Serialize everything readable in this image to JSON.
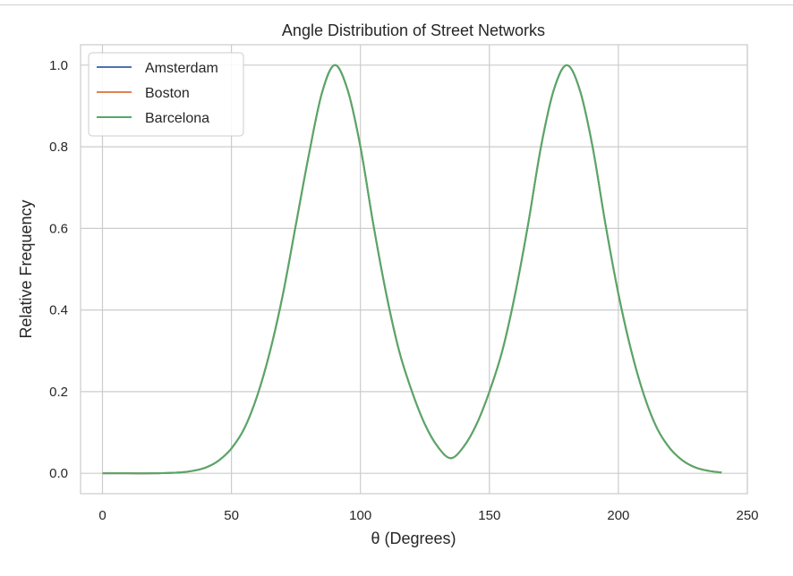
{
  "chart_data": {
    "type": "line",
    "title": "Angle Distribution of Street Networks",
    "xlabel": "θ (Degrees)",
    "ylabel": "Relative Frequency",
    "xlim": [
      -8.5,
      250
    ],
    "ylim": [
      -0.05,
      1.05
    ],
    "xticks": [
      0,
      50,
      100,
      150,
      200,
      250
    ],
    "yticks": [
      0.0,
      0.2,
      0.4,
      0.6,
      0.8,
      1.0
    ],
    "xtick_labels": [
      "0",
      "50",
      "100",
      "150",
      "200",
      "250"
    ],
    "ytick_labels": [
      "0.0",
      "0.2",
      "0.4",
      "0.6",
      "0.8",
      "1.0"
    ],
    "grid": true,
    "legend_position": "top-left",
    "x": [
      0,
      10,
      20,
      30,
      35,
      40,
      45,
      50,
      55,
      60,
      65,
      70,
      75,
      80,
      85,
      90,
      95,
      100,
      105,
      110,
      115,
      120,
      125,
      130,
      135,
      140,
      145,
      150,
      155,
      160,
      165,
      170,
      175,
      180,
      185,
      190,
      195,
      200,
      205,
      210,
      215,
      220,
      225,
      230,
      235,
      240
    ],
    "series": [
      {
        "name": "Amsterdam",
        "color": "#4c72b0",
        "values": [
          0.0,
          0.0,
          0.0,
          0.002,
          0.006,
          0.014,
          0.031,
          0.061,
          0.11,
          0.19,
          0.3,
          0.44,
          0.61,
          0.78,
          0.93,
          1.0,
          0.94,
          0.8,
          0.61,
          0.44,
          0.3,
          0.2,
          0.12,
          0.065,
          0.037,
          0.065,
          0.12,
          0.2,
          0.3,
          0.44,
          0.61,
          0.8,
          0.94,
          1.0,
          0.94,
          0.8,
          0.61,
          0.44,
          0.3,
          0.19,
          0.11,
          0.061,
          0.031,
          0.014,
          0.006,
          0.002
        ]
      },
      {
        "name": "Boston",
        "color": "#dd8452",
        "values": [
          0.0,
          0.0,
          0.0,
          0.002,
          0.006,
          0.014,
          0.031,
          0.061,
          0.11,
          0.19,
          0.3,
          0.44,
          0.61,
          0.78,
          0.93,
          1.0,
          0.94,
          0.8,
          0.61,
          0.44,
          0.3,
          0.2,
          0.12,
          0.065,
          0.037,
          0.065,
          0.12,
          0.2,
          0.3,
          0.44,
          0.61,
          0.8,
          0.94,
          1.0,
          0.94,
          0.8,
          0.61,
          0.44,
          0.3,
          0.19,
          0.11,
          0.061,
          0.031,
          0.014,
          0.006,
          0.002
        ]
      },
      {
        "name": "Barcelona",
        "color": "#55a868",
        "values": [
          0.0,
          0.0,
          0.0,
          0.002,
          0.006,
          0.014,
          0.031,
          0.061,
          0.11,
          0.19,
          0.3,
          0.44,
          0.61,
          0.78,
          0.93,
          1.0,
          0.94,
          0.8,
          0.61,
          0.44,
          0.3,
          0.2,
          0.12,
          0.065,
          0.037,
          0.065,
          0.12,
          0.2,
          0.3,
          0.44,
          0.61,
          0.8,
          0.94,
          1.0,
          0.94,
          0.8,
          0.61,
          0.44,
          0.3,
          0.19,
          0.11,
          0.061,
          0.031,
          0.014,
          0.006,
          0.002
        ]
      }
    ]
  }
}
